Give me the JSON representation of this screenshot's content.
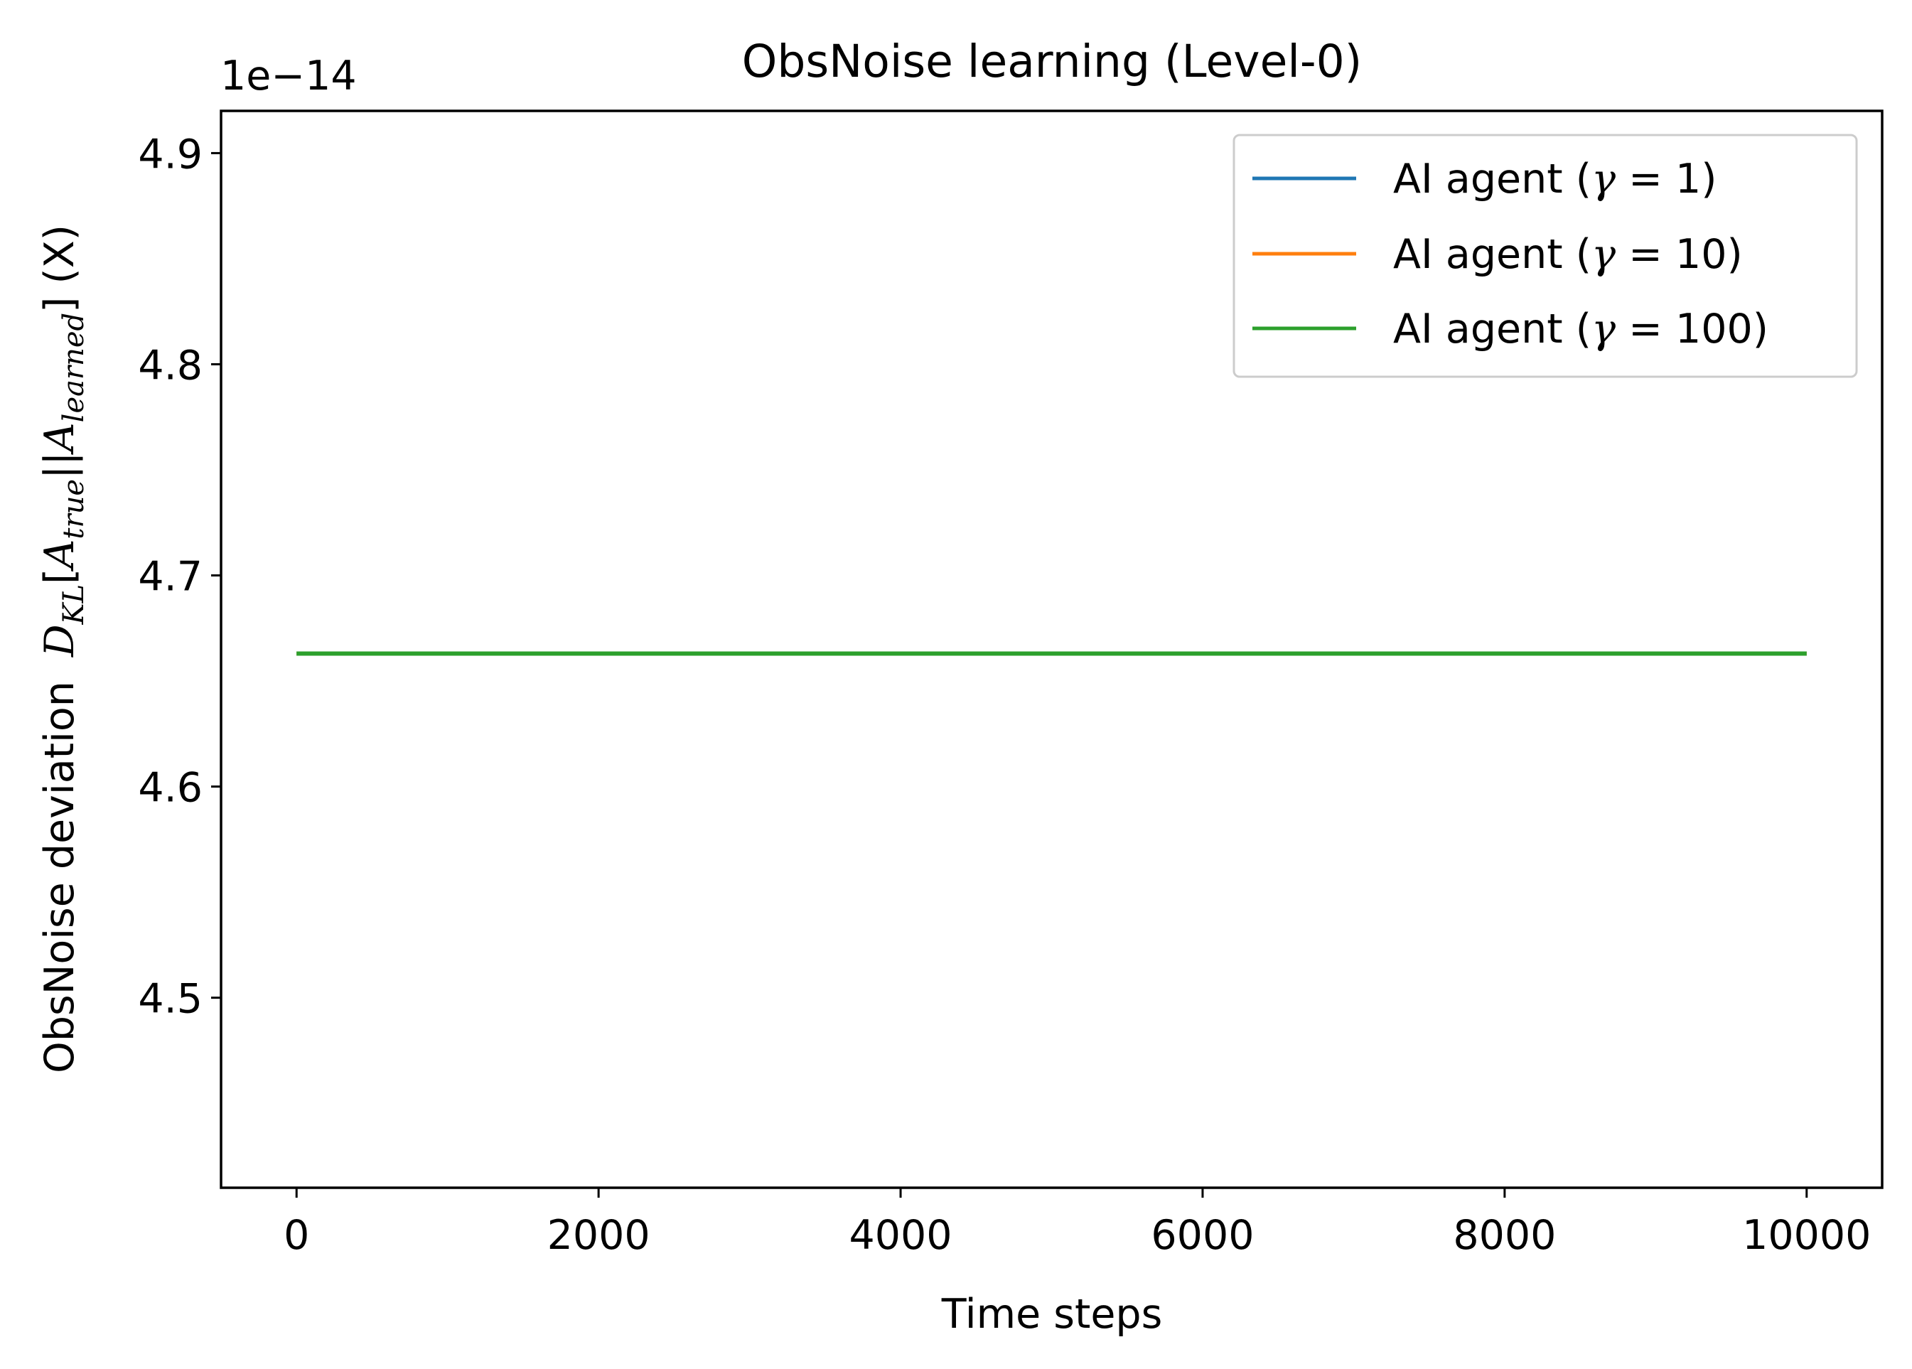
{
  "chart_data": {
    "type": "line",
    "title": "ObsNoise learning (Level-0)",
    "xlabel": "Time steps",
    "ylabel_plain": "ObsNoise deviation",
    "ylabel_math": {
      "D": "D",
      "D_sub": "KL",
      "A": "A",
      "true_sub": "true",
      "learned_sub": "learned",
      "suffix": "(X)"
    },
    "y_offset_label": "1e−14",
    "y_scale": 1e-14,
    "xlim": [
      -500,
      10500
    ],
    "ylim": [
      4.41,
      4.92
    ],
    "xticks": [
      0,
      2000,
      4000,
      6000,
      8000,
      10000
    ],
    "yticks": [
      4.5,
      4.6,
      4.7,
      4.8,
      4.9
    ],
    "ytick_labels": [
      "4.5",
      "4.6",
      "4.7",
      "4.8",
      "4.9"
    ],
    "grid": false,
    "legend_position": "top-right",
    "series": [
      {
        "name": "AI agent (γ = 1)",
        "label_prefix": "AI agent (",
        "gamma_symbol": "γ",
        "gamma_eq": " = 1)",
        "color": "#1f77b4",
        "x": [
          0,
          10000
        ],
        "y": [
          4.663,
          4.663
        ]
      },
      {
        "name": "AI agent (γ = 10)",
        "label_prefix": "AI agent (",
        "gamma_symbol": "γ",
        "gamma_eq": " = 10)",
        "color": "#ff7f0e",
        "x": [
          0,
          10000
        ],
        "y": [
          4.663,
          4.663
        ]
      },
      {
        "name": "AI agent (γ = 100)",
        "label_prefix": "AI agent (",
        "gamma_symbol": "γ",
        "gamma_eq": " = 100)",
        "color": "#2ca02c",
        "x": [
          0,
          10000
        ],
        "y": [
          4.663,
          4.663
        ]
      }
    ]
  }
}
